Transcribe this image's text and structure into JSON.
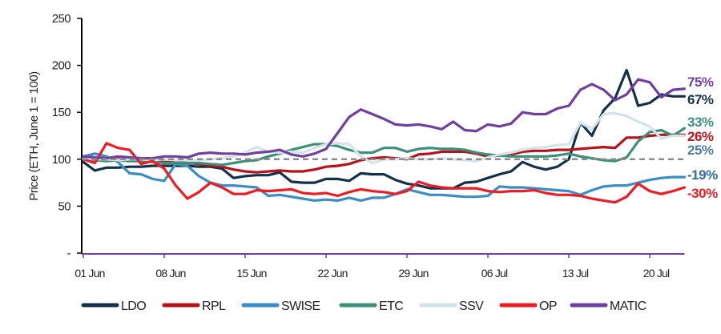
{
  "chart_data": {
    "type": "line",
    "title": "",
    "xlabel": "",
    "ylabel": "Price (ETH, June 1 = 100)",
    "ylim": [
      0,
      250
    ],
    "yticks": [
      0,
      50,
      100,
      150,
      200,
      250
    ],
    "ytick_labels": [
      "-",
      "50",
      "100",
      "150",
      "200",
      "250"
    ],
    "x_start": "01 Jun",
    "x_end": "23 Jul",
    "x_unit": "day",
    "xtick_labels": [
      "01 Jun",
      "08 Jun",
      "15 Jun",
      "22 Jun",
      "29 Jun",
      "06 Jul",
      "13 Jul",
      "20 Jul"
    ],
    "reference_line": {
      "value": 100,
      "style": "dashed",
      "color": "#8c8c8c"
    },
    "grid": false,
    "legend": "bottom",
    "axis_color_x": "#7040a0",
    "series": [
      {
        "name": "LDO",
        "color": "#14304a",
        "end_label": "67%",
        "end_label_color": "#14304a",
        "values": [
          97,
          88,
          91,
          91,
          92,
          92,
          93,
          93,
          93,
          93,
          92,
          92,
          90,
          80,
          82,
          83,
          83,
          86,
          76,
          75,
          75,
          79,
          79,
          77,
          85,
          84,
          84,
          78,
          74,
          72,
          69,
          69,
          69,
          75,
          76,
          80,
          84,
          87,
          97,
          92,
          89,
          92,
          100,
          139,
          125,
          152,
          165,
          195,
          157,
          160,
          169,
          167,
          167
        ]
      },
      {
        "name": "RPL",
        "color": "#b5121b",
        "end_label": "26%",
        "end_label_color": "#c0141c",
        "values": [
          100,
          100,
          99,
          100,
          99,
          99,
          98,
          97,
          97,
          96,
          95,
          93,
          92,
          89,
          87,
          86,
          87,
          88,
          87,
          87,
          89,
          92,
          93,
          95,
          99,
          101,
          102,
          101,
          100,
          105,
          106,
          108,
          108,
          108,
          106,
          103,
          104,
          105,
          108,
          109,
          109,
          110,
          110,
          111,
          112,
          113,
          112,
          123,
          123,
          125,
          126,
          126,
          126
        ]
      },
      {
        "name": "SWISE",
        "color": "#3b8dc4",
        "end_label": "-19%",
        "end_label_color": "#2f6e9e",
        "values": [
          103,
          106,
          103,
          97,
          85,
          84,
          79,
          77,
          95,
          93,
          82,
          75,
          72,
          72,
          71,
          70,
          61,
          62,
          60,
          58,
          56,
          57,
          56,
          59,
          56,
          59,
          59,
          63,
          68,
          65,
          62,
          62,
          61,
          60,
          60,
          61,
          71,
          70,
          70,
          69,
          68,
          67,
          66,
          62,
          67,
          71,
          72,
          72,
          75,
          78,
          80,
          81,
          81
        ]
      },
      {
        "name": "ETC",
        "color": "#3c8f78",
        "end_label": "33%",
        "end_label_color": "#3c8f78",
        "values": [
          100,
          99,
          98,
          99,
          98,
          98,
          97,
          96,
          96,
          96,
          96,
          95,
          94,
          96,
          98,
          99,
          103,
          106,
          110,
          113,
          116,
          116,
          114,
          110,
          107,
          107,
          112,
          112,
          108,
          111,
          112,
          111,
          111,
          110,
          107,
          105,
          104,
          103,
          103,
          103,
          103,
          104,
          106,
          103,
          101,
          99,
          98,
          102,
          119,
          129,
          131,
          125,
          133
        ]
      },
      {
        "name": "SSV",
        "color": "#d3e3e7",
        "end_label": "25%",
        "end_label_color": "#4f7f9a",
        "values": [
          101,
          100,
          100,
          99,
          100,
          100,
          99,
          100,
          99,
          99,
          99,
          100,
          101,
          103,
          107,
          113,
          108,
          107,
          108,
          107,
          112,
          116,
          117,
          116,
          103,
          96,
          100,
          100,
          101,
          100,
          100,
          101,
          100,
          99,
          98,
          102,
          105,
          107,
          110,
          112,
          113,
          115,
          116,
          139,
          132,
          148,
          149,
          146,
          140,
          135,
          122,
          125,
          125
        ]
      },
      {
        "name": "OP",
        "color": "#ed1c24",
        "end_label": "-30%",
        "end_label_color": "#ed1c24",
        "values": [
          100,
          96,
          117,
          112,
          110,
          95,
          98,
          90,
          72,
          58,
          65,
          75,
          70,
          63,
          63,
          67,
          66,
          67,
          68,
          64,
          63,
          64,
          61,
          65,
          68,
          66,
          65,
          63,
          66,
          76,
          72,
          70,
          69,
          69,
          69,
          66,
          65,
          66,
          66,
          67,
          64,
          62,
          62,
          61,
          58,
          56,
          54,
          60,
          74,
          66,
          63,
          66,
          70
        ]
      },
      {
        "name": "MATIC",
        "color": "#7040a0",
        "end_label": "75%",
        "end_label_color": "#7040a0",
        "values": [
          103,
          102,
          101,
          103,
          102,
          101,
          101,
          103,
          103,
          102,
          106,
          107,
          106,
          106,
          105,
          107,
          108,
          110,
          105,
          103,
          106,
          111,
          128,
          145,
          153,
          148,
          143,
          137,
          136,
          137,
          135,
          132,
          140,
          131,
          130,
          137,
          135,
          138,
          150,
          148,
          148,
          154,
          157,
          174,
          180,
          174,
          163,
          169,
          185,
          182,
          166,
          174,
          175
        ]
      }
    ]
  }
}
